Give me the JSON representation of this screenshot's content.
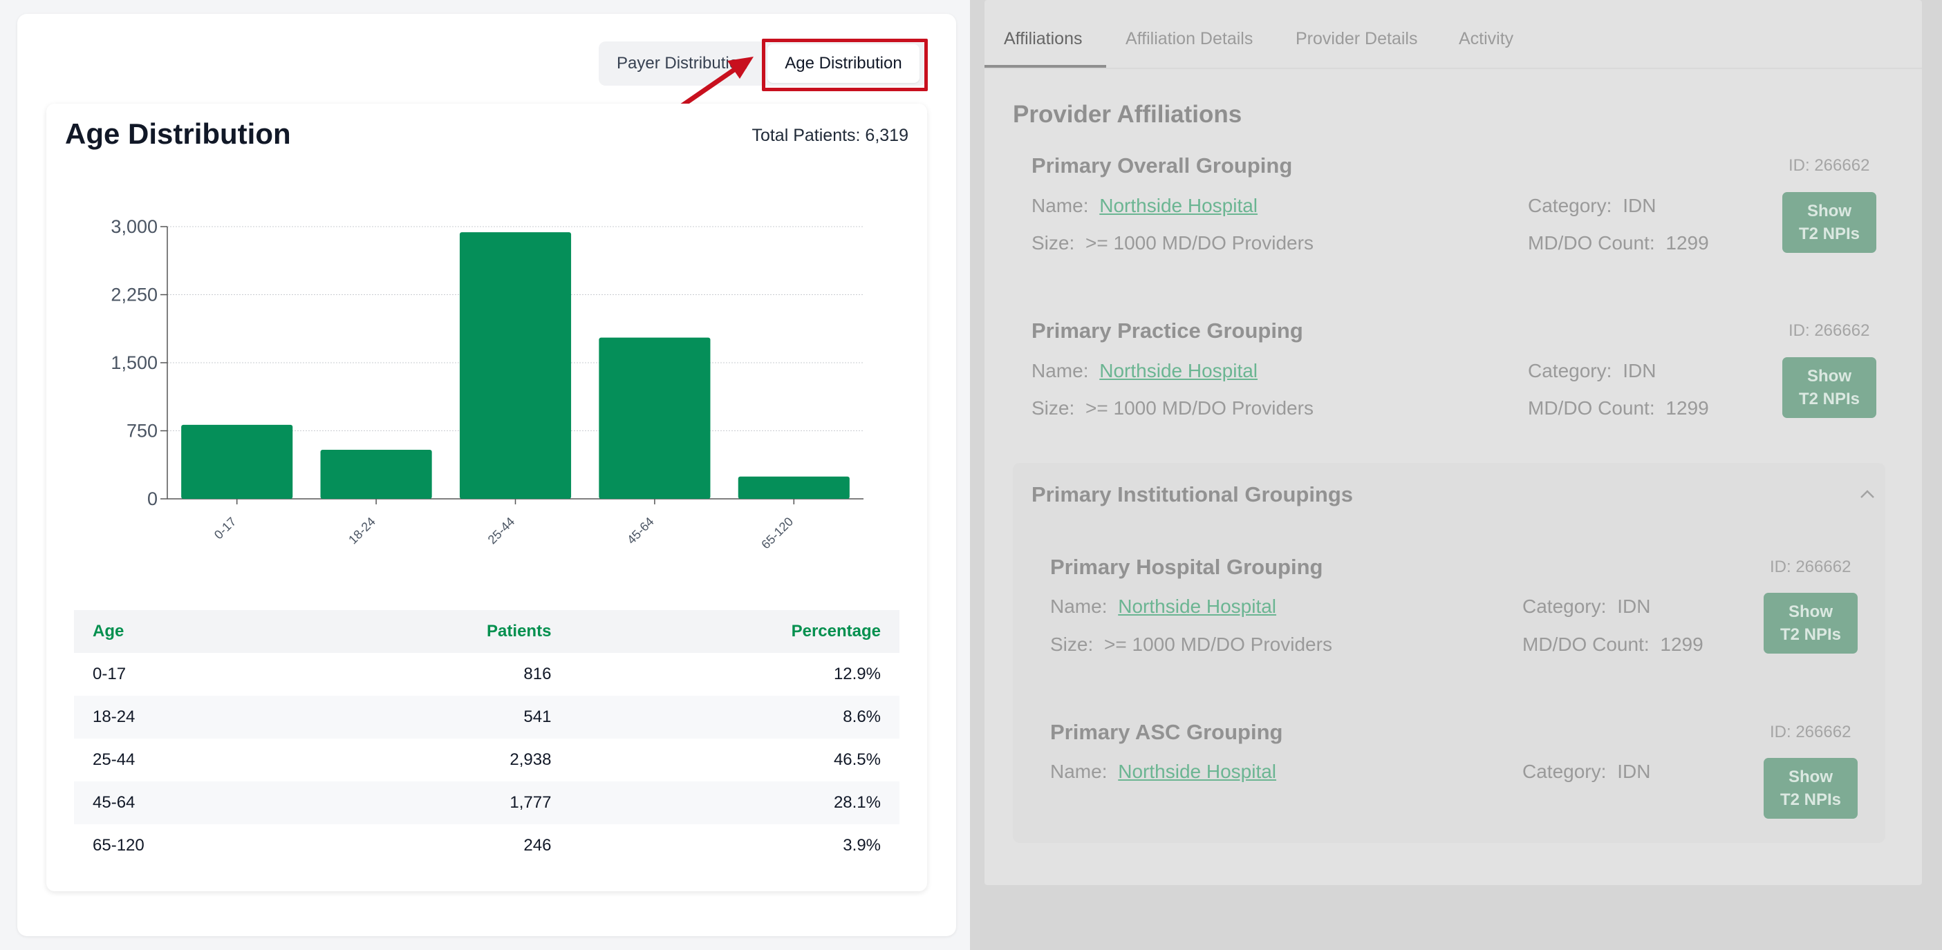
{
  "toggle": {
    "payer_label": "Payer Distribution",
    "age_label": "Age Distribution"
  },
  "chart_card": {
    "title": "Age Distribution",
    "total_patients": "Total Patients: 6,319"
  },
  "chart_data": {
    "type": "bar",
    "categories": [
      "0-17",
      "18-24",
      "25-44",
      "45-64",
      "65-120"
    ],
    "values": [
      816,
      541,
      2938,
      1777,
      246
    ],
    "ylim": [
      0,
      3000
    ],
    "yticks": [
      0,
      750,
      1500,
      2250,
      3000
    ],
    "ytick_labels": [
      "0",
      "750",
      "1,500",
      "2,250",
      "3,000"
    ],
    "grid": true,
    "color": "#058f59"
  },
  "table": {
    "headers": [
      "Age",
      "Patients",
      "Percentage"
    ],
    "rows": [
      [
        "0-17",
        "816",
        "12.9%"
      ],
      [
        "18-24",
        "541",
        "8.6%"
      ],
      [
        "25-44",
        "2,938",
        "46.5%"
      ],
      [
        "45-64",
        "1,777",
        "28.1%"
      ],
      [
        "65-120",
        "246",
        "3.9%"
      ]
    ]
  },
  "right": {
    "tabs": [
      "Affiliations",
      "Affiliation Details",
      "Provider Details",
      "Activity"
    ],
    "section_title": "Provider Affiliations",
    "groups": [
      {
        "title": "Primary Overall Grouping",
        "id": "ID: 266662",
        "name_label": "Name:",
        "name": "Northside Hospital",
        "category_label": "Category:",
        "category": "IDN",
        "size_label": "Size:",
        "size": ">= 1000 MD/DO Providers",
        "count_label": "MD/DO Count:",
        "count": "1299",
        "btn_line1": "Show",
        "btn_line2": "T2 NPIs"
      },
      {
        "title": "Primary Practice Grouping",
        "id": "ID: 266662",
        "name_label": "Name:",
        "name": "Northside Hospital",
        "category_label": "Category:",
        "category": "IDN",
        "size_label": "Size:",
        "size": ">= 1000 MD/DO Providers",
        "count_label": "MD/DO Count:",
        "count": "1299",
        "btn_line1": "Show",
        "btn_line2": "T2 NPIs"
      },
      {
        "title": "Primary Hospital Grouping",
        "id": "ID: 266662",
        "name_label": "Name:",
        "name": "Northside Hospital",
        "category_label": "Category:",
        "category": "IDN",
        "size_label": "Size:",
        "size": ">= 1000 MD/DO Providers",
        "count_label": "MD/DO Count:",
        "count": "1299",
        "btn_line1": "Show",
        "btn_line2": "T2 NPIs"
      },
      {
        "title": "Primary ASC Grouping",
        "id": "ID: 266662",
        "name_label": "Name:",
        "name": "Northside Hospital",
        "category_label": "Category:",
        "category": "IDN",
        "btn_line1": "Show",
        "btn_line2": "T2 NPIs"
      }
    ],
    "institutional_title": "Primary Institutional Groupings"
  }
}
